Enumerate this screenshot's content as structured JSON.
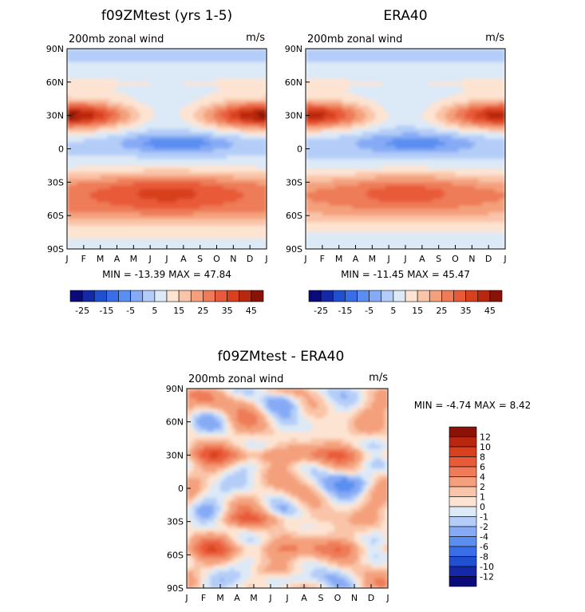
{
  "chart_data": [
    {
      "type": "heatmap",
      "title": "f09ZMtest (yrs 1-5)",
      "subtitle": "200mb zonal wind",
      "units": "m/s",
      "stats": "MIN = -13.39 MAX =  47.84",
      "x_ticks": [
        "J",
        "F",
        "M",
        "A",
        "M",
        "J",
        "J",
        "A",
        "S",
        "O",
        "N",
        "D",
        "J"
      ],
      "y_ticks": [
        "90N",
        "60N",
        "30N",
        "0",
        "30S",
        "60S",
        "90S"
      ],
      "colorbar_ticks": [
        "-25",
        "-15",
        "-5",
        "5",
        "15",
        "25",
        "35",
        "45"
      ],
      "colorbar_levels": [
        -30,
        -25,
        -20,
        -15,
        -10,
        -5,
        0,
        5,
        10,
        15,
        20,
        25,
        30,
        35,
        40,
        45,
        50
      ],
      "colorbar_orientation": "horizontal",
      "min": -13.39,
      "max": 47.84,
      "field": "model"
    },
    {
      "type": "heatmap",
      "title": "ERA40",
      "subtitle": "200mb zonal wind",
      "units": "m/s",
      "stats": "MIN = -11.45 MAX =  45.47",
      "x_ticks": [
        "J",
        "F",
        "M",
        "A",
        "M",
        "J",
        "J",
        "A",
        "S",
        "O",
        "N",
        "D",
        "J"
      ],
      "y_ticks": [
        "90N",
        "60N",
        "30N",
        "0",
        "30S",
        "60S",
        "90S"
      ],
      "colorbar_ticks": [
        "-25",
        "-15",
        "-5",
        "5",
        "15",
        "25",
        "35",
        "45"
      ],
      "colorbar_levels": [
        -30,
        -25,
        -20,
        -15,
        -10,
        -5,
        0,
        5,
        10,
        15,
        20,
        25,
        30,
        35,
        40,
        45,
        50
      ],
      "colorbar_orientation": "horizontal",
      "min": -11.45,
      "max": 45.47,
      "field": "obs"
    },
    {
      "type": "heatmap",
      "title": "f09ZMtest - ERA40",
      "subtitle": "200mb zonal wind",
      "units": "m/s",
      "stats": "MIN =  -4.74 MAX =   8.42",
      "x_ticks": [
        "J",
        "F",
        "M",
        "A",
        "M",
        "J",
        "J",
        "A",
        "S",
        "O",
        "N",
        "D",
        "J"
      ],
      "y_ticks": [
        "90N",
        "60N",
        "30N",
        "0",
        "30S",
        "60S",
        "90S"
      ],
      "colorbar_ticks": [
        "12",
        "10",
        "8",
        "6",
        "4",
        "2",
        "1",
        "0",
        "-1",
        "-2",
        "-4",
        "-6",
        "-8",
        "-10",
        "-12"
      ],
      "colorbar_levels": [
        -14,
        -12,
        -10,
        -8,
        -6,
        -4,
        -2,
        -1,
        0,
        1,
        2,
        4,
        6,
        8,
        10,
        12,
        14
      ],
      "colorbar_orientation": "vertical",
      "min": -4.74,
      "max": 8.42,
      "field": "diff"
    }
  ],
  "palette": [
    "#0a0a7a",
    "#1428a8",
    "#2050d0",
    "#3a6ee8",
    "#5a8ef0",
    "#86aaf5",
    "#b4cdf8",
    "#dce9f7",
    "#fde4d2",
    "#f9c4a8",
    "#f4a07c",
    "#ee7c58",
    "#e85a38",
    "#d8401e",
    "#b82810",
    "#8a1206"
  ]
}
